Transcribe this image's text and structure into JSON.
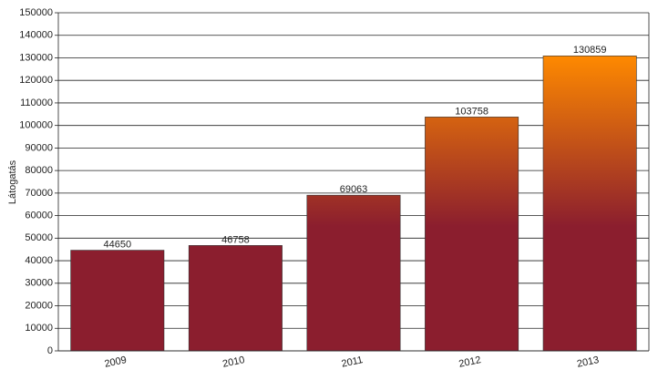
{
  "chart_data": {
    "type": "bar",
    "y_label": "Látogatás",
    "categories": [
      "2009",
      "2010",
      "2011",
      "2012",
      "2013"
    ],
    "values": [
      44650,
      46758,
      69063,
      103758,
      130859
    ],
    "color": "#8b1e2e",
    "gradient_top_color": "#ff8a00",
    "ylim": [
      0,
      150000
    ],
    "yticks": [
      0,
      10000,
      20000,
      30000,
      40000,
      50000,
      60000,
      70000,
      80000,
      90000,
      100000,
      110000,
      120000,
      130000,
      140000,
      150000
    ],
    "grid": true
  }
}
